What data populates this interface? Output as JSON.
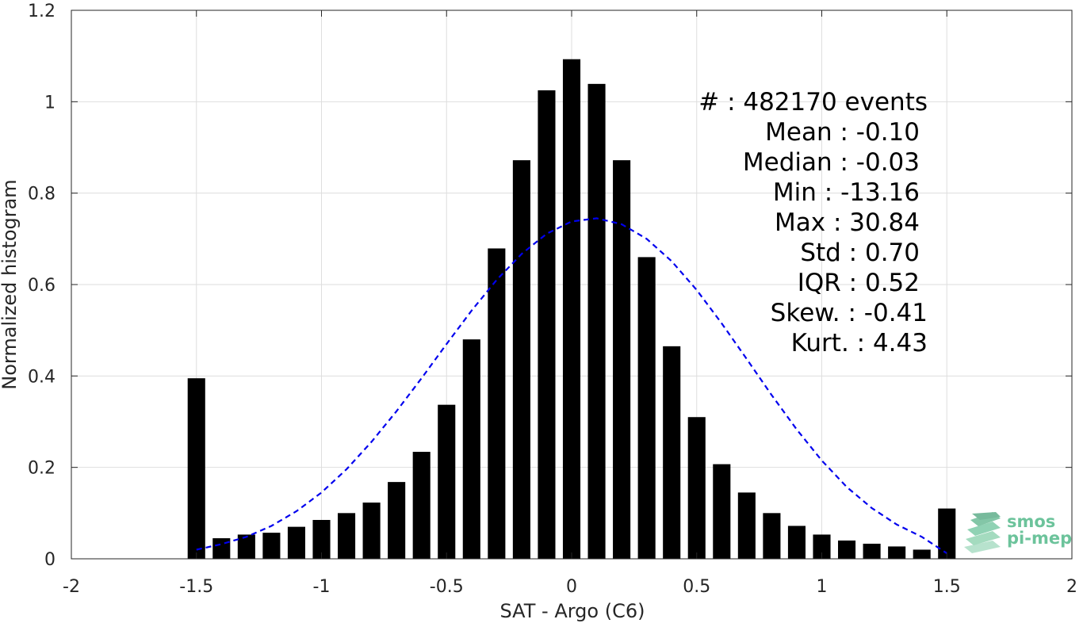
{
  "chart_data": {
    "type": "bar",
    "xlabel": "SAT - Argo (C6)",
    "ylabel": "Normalized histogram",
    "xlim": [
      -2,
      2
    ],
    "ylim": [
      0,
      1.2
    ],
    "xticks": [
      -2,
      -1.5,
      -1,
      -0.5,
      0,
      0.5,
      1,
      1.5,
      2
    ],
    "xtick_labels": [
      "-2",
      "-1.5",
      "-1",
      "-0.5",
      "0",
      "0.5",
      "1",
      "1.5",
      "2"
    ],
    "yticks": [
      0,
      0.2,
      0.4,
      0.6,
      0.8,
      1,
      1.2
    ],
    "ytick_labels": [
      "0",
      "0.2",
      "0.4",
      "0.6",
      "0.8",
      "1",
      "1.2"
    ],
    "grid": true,
    "bar_color": "#000000",
    "bar_width": 0.07,
    "series": [
      {
        "x": [
          -1.5,
          -1.4,
          -1.3,
          -1.2,
          -1.1,
          -1.0,
          -0.9,
          -0.8,
          -0.7,
          -0.6,
          -0.5,
          -0.4,
          -0.3,
          -0.2,
          -0.1,
          0.0,
          0.1,
          0.2,
          0.3,
          0.4,
          0.5,
          0.6,
          0.7,
          0.8,
          0.9,
          1.0,
          1.1,
          1.2,
          1.3,
          1.4,
          1.5
        ],
        "values": [
          0.395,
          0.045,
          0.053,
          0.057,
          0.07,
          0.085,
          0.1,
          0.123,
          0.168,
          0.234,
          0.337,
          0.48,
          0.679,
          0.872,
          1.025,
          1.093,
          1.039,
          0.872,
          0.66,
          0.465,
          0.31,
          0.207,
          0.145,
          0.1,
          0.072,
          0.053,
          0.04,
          0.033,
          0.027,
          0.02,
          0.11
        ]
      }
    ],
    "fit_curve": {
      "style": "dashed",
      "color": "#0000ee",
      "x": [
        -1.5,
        -1.4,
        -1.3,
        -1.2,
        -1.1,
        -1.0,
        -0.9,
        -0.8,
        -0.7,
        -0.6,
        -0.5,
        -0.4,
        -0.3,
        -0.2,
        -0.1,
        0.0,
        0.1,
        0.2,
        0.3,
        0.4,
        0.5,
        0.6,
        0.7,
        0.8,
        0.9,
        1.0,
        1.1,
        1.2,
        1.3,
        1.4,
        1.5
      ],
      "y": [
        0.02,
        0.032,
        0.048,
        0.072,
        0.104,
        0.145,
        0.196,
        0.256,
        0.323,
        0.395,
        0.47,
        0.543,
        0.61,
        0.667,
        0.711,
        0.738,
        0.745,
        0.732,
        0.7,
        0.651,
        0.588,
        0.515,
        0.437,
        0.358,
        0.283,
        0.215,
        0.157,
        0.111,
        0.075,
        0.048,
        0.012
      ]
    },
    "stats": [
      "#  : 482170 events",
      "Mean : -0.10",
      "Median : -0.03",
      "Min : -13.16",
      "Max : 30.84",
      "Std : 0.70",
      "IQR : 0.52",
      "Skew. : -0.41",
      "Kurt. : 4.43"
    ]
  },
  "logo": {
    "line1": "smos",
    "line2": "pi-mep",
    "color": "#6cc39b"
  }
}
